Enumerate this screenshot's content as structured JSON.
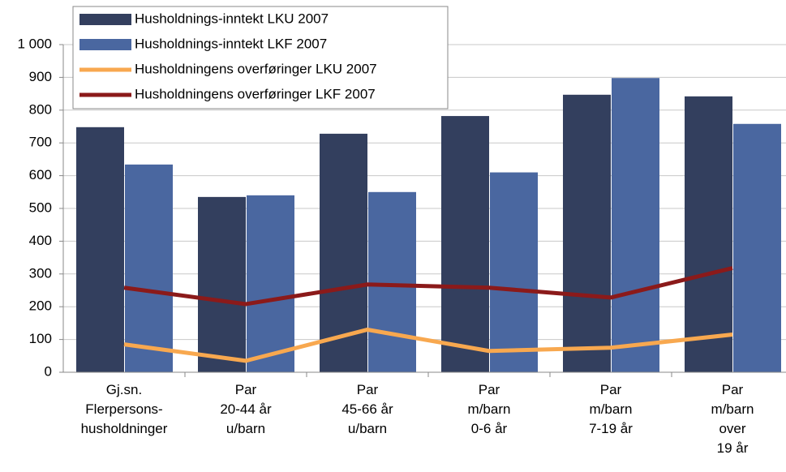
{
  "chart_data": {
    "type": "bar",
    "categories": [
      "Gj.sn.\nFlerpersons-\nhusholdninger",
      "Par\n20-44 år\nu/barn",
      "Par\n45-66 år\nu/barn",
      "Par\nm/barn\n0-6 år",
      "Par\nm/barn\n7-19 år",
      "Par\nm/barn\nover\n19 år"
    ],
    "series": [
      {
        "name": "Husholdnings-inntekt LKU 2007",
        "type": "bar",
        "color": "#333f5e",
        "values": [
          748,
          535,
          728,
          782,
          847,
          842
        ]
      },
      {
        "name": "Husholdnings-inntekt LKF 2007",
        "type": "bar",
        "color": "#4a67a0",
        "values": [
          634,
          540,
          550,
          610,
          898,
          758
        ]
      },
      {
        "name": "Husholdningens overføringer LKU 2007",
        "type": "line",
        "color": "#f8a84f",
        "values": [
          85,
          35,
          130,
          65,
          75,
          115
        ]
      },
      {
        "name": "Husholdningens overføringer LKF 2007",
        "type": "line",
        "color": "#8b1a1a",
        "values": [
          258,
          208,
          268,
          258,
          228,
          318
        ]
      }
    ],
    "ylim": [
      0,
      1000
    ],
    "yticks": [
      0,
      100,
      200,
      300,
      400,
      500,
      600,
      700,
      800,
      900,
      {
        "value": 1000,
        "label": "1 000"
      }
    ],
    "grid": true,
    "legend": "top-left"
  }
}
